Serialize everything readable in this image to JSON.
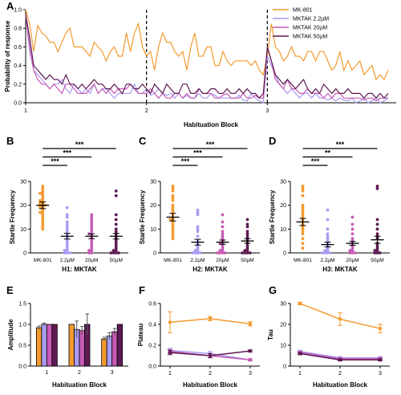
{
  "colors": {
    "mk801": "#f39a2e",
    "mktak_2_2": "#a99cf2",
    "mktak_20": "#c65bb5",
    "mktak_50": "#5e1a52"
  },
  "chart_data": [
    {
      "panel": "A",
      "type": "line",
      "xlabel": "Habituation Block",
      "ylabel": "Probability of response",
      "xticks": [
        "1",
        "2",
        "3"
      ],
      "ylim": [
        0,
        1.0
      ],
      "yticks": [
        "0.0",
        "0.2",
        "0.4",
        "0.6",
        "0.8",
        "1.0"
      ],
      "legend_position": "top-right",
      "series": [
        {
          "name": "MK-801",
          "color": "#f39a2e",
          "values": [
            1.0,
            0.85,
            0.55,
            0.83,
            0.75,
            0.72,
            0.65,
            0.65,
            0.55,
            0.65,
            0.75,
            0.8,
            0.6,
            0.6,
            0.6,
            0.55,
            0.5,
            0.65,
            0.6,
            0.55,
            0.45,
            0.55,
            0.6,
            0.5,
            0.5,
            0.75,
            0.55,
            0.75,
            0.85,
            0.6,
            0.5,
            0.55,
            0.35,
            0.6,
            0.75,
            0.65,
            0.65,
            0.55,
            0.5,
            0.55,
            0.35,
            0.6,
            0.75,
            0.5,
            0.5,
            0.6,
            0.6,
            0.4,
            0.4,
            0.55,
            0.45,
            0.4,
            0.45,
            0.45,
            0.45,
            0.45,
            0.4,
            0.45,
            0.35,
            0.3,
            0.5,
            0.85,
            0.6,
            0.55,
            0.45,
            0.5,
            0.6,
            0.5,
            0.5,
            0.45,
            0.55,
            0.55,
            0.45,
            0.55,
            0.55,
            0.45,
            0.35,
            0.4,
            0.55,
            0.35,
            0.45,
            0.35,
            0.4,
            0.45,
            0.3,
            0.35,
            0.4,
            0.25,
            0.3,
            0.25,
            0.35
          ]
        },
        {
          "name": "MKTAK 2.2µM",
          "color": "#a99cf2",
          "values": [
            0.95,
            0.55,
            0.35,
            0.3,
            0.25,
            0.2,
            0.15,
            0.2,
            0.2,
            0.25,
            0.15,
            0.1,
            0.2,
            0.15,
            0.1,
            0.15,
            0.1,
            0.2,
            0.1,
            0.15,
            0.15,
            0.1,
            0.05,
            0.1,
            0.1,
            0.1,
            0.1,
            0.2,
            0.1,
            0.1,
            0.15,
            0.08,
            0.1,
            0.15,
            0.1,
            0.08,
            0.1,
            0.05,
            0.1,
            0.05,
            0.08,
            0.05,
            0.05,
            0.1,
            0.05,
            0.05,
            0.1,
            0.08,
            0.05,
            0.05,
            0.05,
            0.05,
            0.05,
            0.08,
            0.03,
            0.02,
            0.1,
            0.05,
            0.02,
            0.0,
            0.5,
            0.4,
            0.3,
            0.2,
            0.15,
            0.1,
            0.15,
            0.1,
            0.05,
            0.1,
            0.1,
            0.05,
            0.1,
            0.05,
            0.05,
            0.03,
            0.05,
            0.02,
            0.05,
            0.03,
            0.02,
            0.05,
            0.0,
            0.02,
            0.05,
            0.0,
            0.02,
            0.05,
            0.0,
            0.02,
            0.05
          ]
        },
        {
          "name": "MKTAK 20µM",
          "color": "#c65bb5",
          "values": [
            0.95,
            0.6,
            0.35,
            0.25,
            0.2,
            0.2,
            0.15,
            0.2,
            0.15,
            0.1,
            0.2,
            0.2,
            0.15,
            0.1,
            0.1,
            0.1,
            0.15,
            0.2,
            0.1,
            0.15,
            0.1,
            0.15,
            0.1,
            0.15,
            0.15,
            0.15,
            0.2,
            0.15,
            0.1,
            0.1,
            0.1,
            0.15,
            0.1,
            0.05,
            0.1,
            0.05,
            0.05,
            0.1,
            0.1,
            0.05,
            0.1,
            0.05,
            0.05,
            0.15,
            0.1,
            0.1,
            0.1,
            0.05,
            0.05,
            0.08,
            0.1,
            0.05,
            0.05,
            0.05,
            0.1,
            0.05,
            0.05,
            0.08,
            0.05,
            0.05,
            0.6,
            0.45,
            0.25,
            0.2,
            0.15,
            0.25,
            0.15,
            0.15,
            0.1,
            0.1,
            0.15,
            0.1,
            0.1,
            0.1,
            0.05,
            0.1,
            0.05,
            0.1,
            0.1,
            0.05,
            0.05,
            0.05,
            0.05,
            0.05,
            0.03,
            0.05,
            0.05,
            0.02,
            0.05,
            0.05,
            0.05
          ]
        },
        {
          "name": "MKTAK 50µM",
          "color": "#5e1a52",
          "values": [
            0.95,
            0.7,
            0.4,
            0.35,
            0.3,
            0.25,
            0.3,
            0.25,
            0.25,
            0.2,
            0.3,
            0.2,
            0.2,
            0.15,
            0.2,
            0.15,
            0.2,
            0.25,
            0.2,
            0.2,
            0.15,
            0.15,
            0.2,
            0.15,
            0.1,
            0.2,
            0.2,
            0.15,
            0.15,
            0.2,
            0.15,
            0.1,
            0.2,
            0.15,
            0.1,
            0.2,
            0.15,
            0.1,
            0.1,
            0.2,
            0.2,
            0.1,
            0.1,
            0.15,
            0.1,
            0.1,
            0.15,
            0.15,
            0.1,
            0.1,
            0.15,
            0.1,
            0.1,
            0.15,
            0.1,
            0.15,
            0.1,
            0.1,
            0.05,
            0.1,
            0.6,
            0.45,
            0.3,
            0.25,
            0.2,
            0.25,
            0.2,
            0.15,
            0.2,
            0.25,
            0.15,
            0.1,
            0.15,
            0.1,
            0.2,
            0.15,
            0.1,
            0.15,
            0.1,
            0.1,
            0.15,
            0.1,
            0.1,
            0.1,
            0.05,
            0.1,
            0.1,
            0.05,
            0.1,
            0.05,
            0.1
          ]
        }
      ]
    },
    {
      "panel": "B",
      "type": "scatter",
      "xlabel": "H1: MKTAK",
      "ylabel": "Startle Frequency",
      "ylim": [
        0,
        30
      ],
      "yticks": [
        "0",
        "10",
        "20",
        "30"
      ],
      "categories": [
        "MK-801",
        "2.2µM",
        "20µM",
        "50µM"
      ],
      "means": [
        20,
        7,
        7,
        7
      ],
      "errors": [
        1.4,
        1.2,
        1.0,
        1.2
      ],
      "points": [
        [
          28,
          27,
          26,
          25,
          25,
          24,
          23,
          22,
          22,
          21,
          21,
          20,
          20,
          20,
          19,
          19,
          18,
          17,
          17,
          16,
          15,
          14,
          13,
          12,
          11,
          10
        ],
        [
          19,
          16,
          15,
          13,
          12,
          11,
          10,
          9,
          8,
          7,
          6,
          5,
          4,
          3,
          2,
          1,
          1,
          0,
          0,
          0
        ],
        [
          16,
          15,
          14,
          13,
          12,
          11,
          10,
          9,
          8,
          8,
          7,
          6,
          5,
          4,
          3,
          2,
          1,
          1,
          0,
          0
        ],
        [
          26,
          24,
          16,
          14,
          12,
          10,
          9,
          8,
          7,
          6,
          5,
          4,
          3,
          2,
          1,
          1,
          0,
          0,
          0,
          0
        ]
      ],
      "significance": [
        {
          "pair": [
            0,
            1
          ],
          "label": "***"
        },
        {
          "pair": [
            0,
            2
          ],
          "label": "***"
        },
        {
          "pair": [
            0,
            3
          ],
          "label": "***"
        }
      ]
    },
    {
      "panel": "C",
      "type": "scatter",
      "xlabel": "H2: MKTAK",
      "ylabel": "Startle Frequency",
      "ylim": [
        0,
        30
      ],
      "yticks": [
        "0",
        "10",
        "20",
        "30"
      ],
      "categories": [
        "MK-801",
        "2.2µM",
        "20µM",
        "50µM"
      ],
      "means": [
        15,
        4.5,
        4.5,
        5
      ],
      "errors": [
        1.6,
        1.2,
        0.9,
        1.0
      ],
      "points": [
        [
          28,
          27,
          26,
          24,
          23,
          22,
          20,
          19,
          18,
          17,
          16,
          15,
          14,
          14,
          13,
          12,
          11,
          10,
          9,
          8,
          7,
          6
        ],
        [
          18,
          17,
          16,
          11,
          10,
          9,
          7,
          5,
          4,
          3,
          2,
          1,
          1,
          0,
          0,
          0,
          0
        ],
        [
          16,
          13,
          11,
          9,
          8,
          7,
          6,
          5,
          4,
          4,
          3,
          2,
          1,
          1,
          0,
          0,
          0,
          0
        ],
        [
          14,
          12,
          11,
          9,
          8,
          7,
          6,
          5,
          4,
          3,
          2,
          1,
          1,
          0,
          0,
          0,
          0
        ]
      ],
      "significance": [
        {
          "pair": [
            0,
            1
          ],
          "label": "***"
        },
        {
          "pair": [
            0,
            2
          ],
          "label": "***"
        },
        {
          "pair": [
            0,
            3
          ],
          "label": "***"
        }
      ]
    },
    {
      "panel": "D",
      "type": "scatter",
      "xlabel": "H3: MKTAK",
      "ylabel": "Startle Frequency",
      "ylim": [
        0,
        30
      ],
      "yticks": [
        "0",
        "10",
        "20",
        "30"
      ],
      "categories": [
        "MK-801",
        "2.2µM",
        "20µM",
        "50µM"
      ],
      "means": [
        13,
        3.5,
        4,
        5.5
      ],
      "errors": [
        1.5,
        1.0,
        0.8,
        1.5
      ],
      "points": [
        [
          28,
          27,
          26,
          24,
          20,
          19,
          18,
          17,
          16,
          15,
          14,
          13,
          12,
          11,
          10,
          9,
          8,
          6,
          4,
          2
        ],
        [
          18,
          14,
          10,
          8,
          7,
          6,
          5,
          4,
          3,
          2,
          1,
          1,
          0,
          0,
          0,
          0
        ],
        [
          15,
          12,
          10,
          8,
          6,
          5,
          4,
          3,
          2,
          1,
          1,
          0,
          0,
          0
        ],
        [
          28,
          27,
          14,
          12,
          10,
          8,
          7,
          6,
          4,
          3,
          2,
          1,
          1,
          0,
          0,
          0
        ]
      ],
      "significance": [
        {
          "pair": [
            0,
            1
          ],
          "label": "***"
        },
        {
          "pair": [
            0,
            2
          ],
          "label": "**"
        },
        {
          "pair": [
            0,
            3
          ],
          "label": "***"
        }
      ]
    },
    {
      "panel": "E",
      "type": "bar",
      "xlabel": "Habituation Block",
      "ylabel": "Amplitude",
      "ylim": [
        0,
        1.5
      ],
      "yticks": [
        "0.0",
        "0.5",
        "1.0",
        "1.5"
      ],
      "categories": [
        "1",
        "2",
        "3"
      ],
      "series": [
        {
          "name": "MK-801",
          "color": "#f39a2e",
          "values": [
            0.92,
            1.0,
            0.65
          ],
          "errors": [
            0.04,
            0.0,
            0.04
          ]
        },
        {
          "name": "MKTAK 2.2µM",
          "color": "#a99cf2",
          "values": [
            1.0,
            0.88,
            0.72
          ],
          "errors": [
            0.03,
            0.2,
            0.08
          ]
        },
        {
          "name": "MKTAK 20µM",
          "color": "#c65bb5",
          "values": [
            1.0,
            0.85,
            0.82
          ],
          "errors": [
            0.0,
            0.1,
            0.08
          ]
        },
        {
          "name": "MKTAK 50µM",
          "color": "#5e1a52",
          "values": [
            1.0,
            1.0,
            1.0
          ],
          "errors": [
            0.0,
            0.25,
            0.0
          ]
        }
      ]
    },
    {
      "panel": "F",
      "type": "line",
      "xlabel": "Habituation Block",
      "ylabel": "Plateau",
      "ylim": [
        0,
        0.6
      ],
      "yticks": [
        "0.0",
        "0.2",
        "0.4",
        "0.6"
      ],
      "categories": [
        "1",
        "2",
        "3"
      ],
      "series": [
        {
          "name": "MK-801",
          "color": "#f39a2e",
          "values": [
            0.42,
            0.455,
            0.405
          ],
          "errors": [
            0.1,
            0.02,
            0.02
          ]
        },
        {
          "name": "MKTAK 2.2µM",
          "color": "#a99cf2",
          "values": [
            0.15,
            0.12,
            0.06
          ],
          "errors": [
            0.02,
            0.02,
            0.01
          ]
        },
        {
          "name": "MKTAK 20µM",
          "color": "#c65bb5",
          "values": [
            0.14,
            0.1,
            0.06
          ],
          "errors": [
            0.02,
            0.02,
            0.01
          ]
        },
        {
          "name": "MKTAK 50µM",
          "color": "#5e1a52",
          "values": [
            0.13,
            0.1,
            0.145
          ],
          "errors": [
            0.02,
            0.02,
            0.01
          ]
        }
      ]
    },
    {
      "panel": "G",
      "type": "line",
      "xlabel": "Habituation Block",
      "ylabel": "Tau",
      "ylim": [
        0,
        30
      ],
      "yticks": [
        "0",
        "10",
        "20",
        "30"
      ],
      "categories": [
        "1",
        "2",
        "3"
      ],
      "series": [
        {
          "name": "MK-801",
          "color": "#f39a2e",
          "values": [
            30,
            22.5,
            18
          ],
          "errors": [
            0.6,
            3,
            2
          ]
        },
        {
          "name": "MKTAK 2.2µM",
          "color": "#a99cf2",
          "values": [
            7,
            4,
            4
          ],
          "errors": [
            0.6,
            0.5,
            0.5
          ]
        },
        {
          "name": "MKTAK 20µM",
          "color": "#c65bb5",
          "values": [
            6.5,
            3.5,
            3.5
          ],
          "errors": [
            0.6,
            0.5,
            0.5
          ]
        },
        {
          "name": "MKTAK 50µM",
          "color": "#5e1a52",
          "values": [
            6,
            3,
            3
          ],
          "errors": [
            0.6,
            0.5,
            0.5
          ]
        }
      ]
    }
  ]
}
